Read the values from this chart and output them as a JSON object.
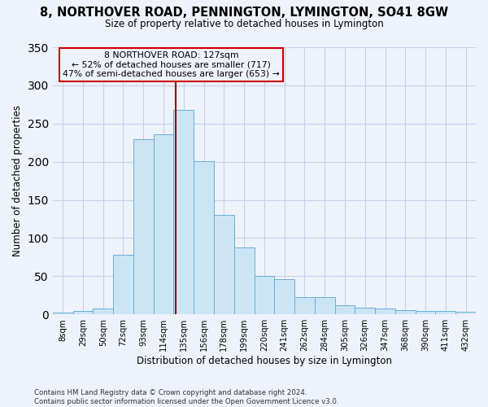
{
  "title": "8, NORTHOVER ROAD, PENNINGTON, LYMINGTON, SO41 8GW",
  "subtitle": "Size of property relative to detached houses in Lymington",
  "xlabel": "Distribution of detached houses by size in Lymington",
  "ylabel": "Number of detached properties",
  "bar_labels": [
    "8sqm",
    "29sqm",
    "50sqm",
    "72sqm",
    "93sqm",
    "114sqm",
    "135sqm",
    "156sqm",
    "178sqm",
    "199sqm",
    "220sqm",
    "241sqm",
    "262sqm",
    "284sqm",
    "305sqm",
    "326sqm",
    "347sqm",
    "368sqm",
    "390sqm",
    "411sqm",
    "432sqm"
  ],
  "bar_heights": [
    2,
    5,
    8,
    78,
    229,
    236,
    268,
    201,
    130,
    88,
    50,
    46,
    23,
    23,
    12,
    9,
    8,
    6,
    5,
    5,
    3
  ],
  "bar_color": "#cce5f5",
  "bar_edge_color": "#6baed6",
  "vline_color": "#990000",
  "annotation_box_edge": "#cc0000",
  "annotation_text": "8 NORTHOVER ROAD: 127sqm\n← 52% of detached houses are smaller (717)\n47% of semi-detached houses are larger (653) →",
  "footer": "Contains HM Land Registry data © Crown copyright and database right 2024.\nContains public sector information licensed under the Open Government Licence v3.0.",
  "bg_color": "#eef2fb",
  "ylim": [
    0,
    350
  ],
  "grid_color": "#c8cfe8"
}
